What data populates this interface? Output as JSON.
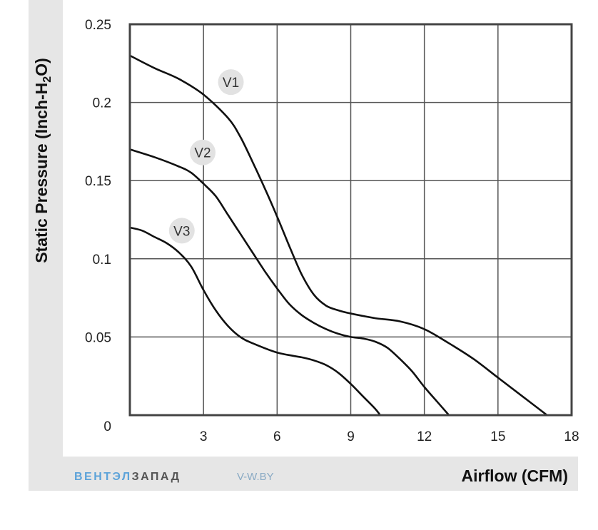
{
  "chart_data": {
    "type": "line",
    "xlabel": "Airflow (CFM)",
    "ylabel_main": "Static Pressure (Inch-H",
    "ylabel_sub": "2",
    "ylabel_end": "O)",
    "xlim": [
      0,
      18
    ],
    "ylim": [
      0,
      0.25
    ],
    "x_ticks": [
      3,
      6,
      9,
      12,
      15,
      18
    ],
    "x_tick_labels": [
      "3",
      "6",
      "9",
      "12",
      "15",
      "18"
    ],
    "y_ticks": [
      0,
      0.05,
      0.1,
      0.15,
      0.2,
      0.25
    ],
    "y_tick_labels": [
      "0",
      "0.05",
      "0.1",
      "0.15",
      "0.2",
      "0.25"
    ],
    "grid": true,
    "series": [
      {
        "name": "V1",
        "x": [
          0,
          1,
          2,
          3,
          4,
          4.5,
          5,
          5.5,
          6,
          6.5,
          7,
          7.5,
          8,
          8.5,
          9,
          10,
          11,
          12,
          13,
          14,
          15,
          16,
          17
        ],
        "y": [
          0.23,
          0.222,
          0.215,
          0.205,
          0.19,
          0.178,
          0.162,
          0.145,
          0.127,
          0.108,
          0.09,
          0.077,
          0.07,
          0.067,
          0.065,
          0.062,
          0.06,
          0.055,
          0.046,
          0.036,
          0.024,
          0.012,
          0
        ]
      },
      {
        "name": "V2",
        "x": [
          0,
          1,
          2,
          2.5,
          3,
          3.5,
          4,
          4.5,
          5,
          5.5,
          6,
          6.5,
          7,
          7.5,
          8,
          8.5,
          9,
          9.5,
          10,
          10.5,
          11,
          11.5,
          12,
          12.5,
          13
        ],
        "y": [
          0.17,
          0.165,
          0.159,
          0.155,
          0.148,
          0.14,
          0.128,
          0.116,
          0.104,
          0.092,
          0.081,
          0.071,
          0.064,
          0.059,
          0.055,
          0.052,
          0.05,
          0.049,
          0.047,
          0.043,
          0.036,
          0.028,
          0.018,
          0.009,
          0
        ]
      },
      {
        "name": "V3",
        "x": [
          0,
          0.5,
          1,
          1.5,
          2,
          2.5,
          3,
          3.5,
          4,
          4.5,
          5,
          6,
          7,
          7.5,
          8,
          8.5,
          9,
          9.5,
          10,
          10.2
        ],
        "y": [
          0.12,
          0.118,
          0.114,
          0.11,
          0.104,
          0.095,
          0.08,
          0.067,
          0.057,
          0.05,
          0.046,
          0.04,
          0.037,
          0.035,
          0.032,
          0.027,
          0.02,
          0.012,
          0.004,
          0
        ]
      }
    ]
  },
  "footer": {
    "brand_part1": "ВЕНТЭЛ",
    "brand_part2": "ЗАПАД",
    "site": "V-W.BY"
  },
  "colors": {
    "panel": "#e6e6e6",
    "line": "#111111",
    "brand_blue": "#5da3d9"
  }
}
